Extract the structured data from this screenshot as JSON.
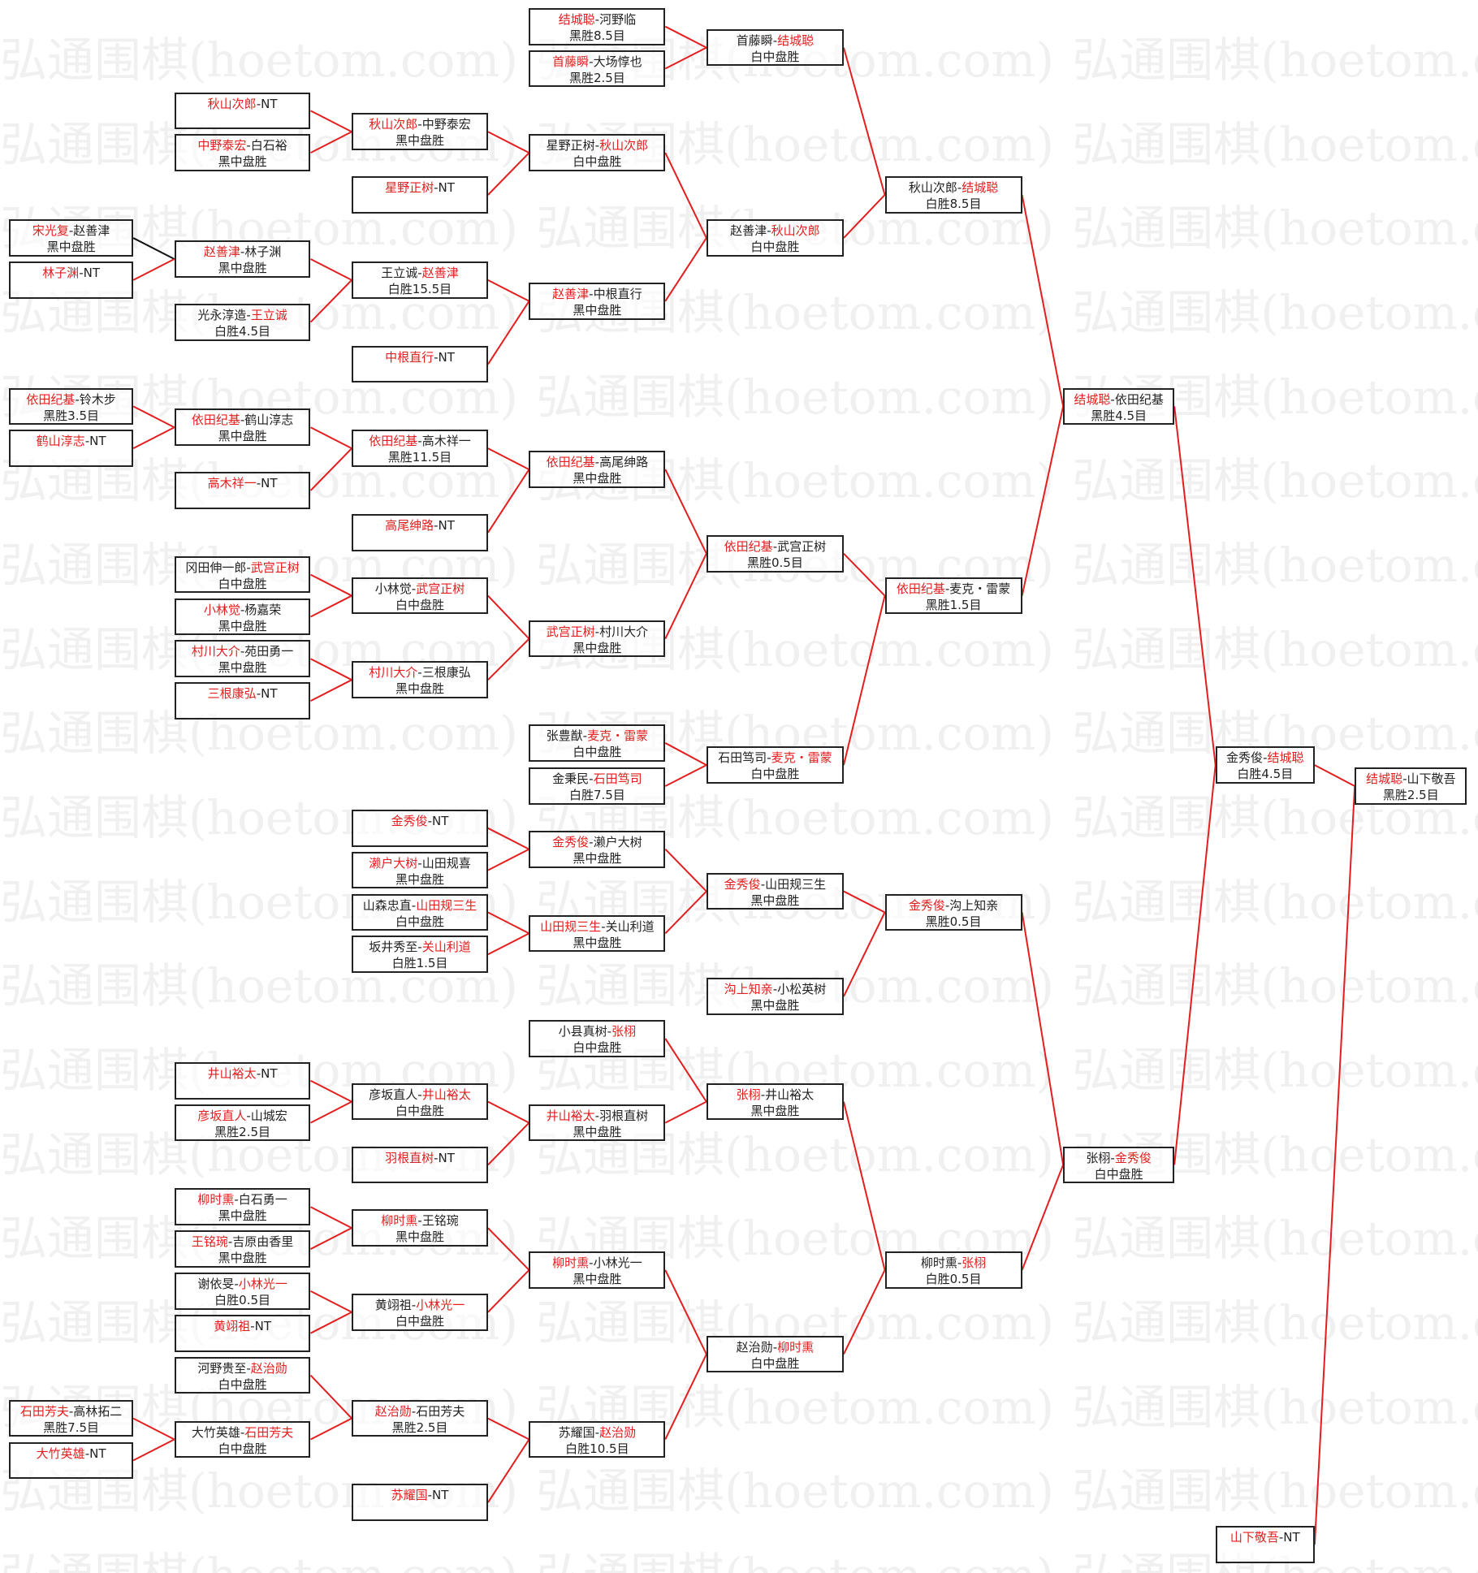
{
  "watermark": "弘通围棋(hoetom.com)",
  "colors": {
    "winner": "#e41e1e",
    "line": "#e41e1e",
    "line_alt": "#111111",
    "border": "#222222"
  },
  "matches": [
    {
      "p1": "结城聪",
      "p2": "河野临",
      "winner": 1,
      "result": "黑胜8.5目"
    },
    {
      "p1": "首藤瞬",
      "p2": "大场惇也",
      "winner": 1,
      "result": "黑胜2.5目"
    },
    {
      "p1": "首藤瞬",
      "p2": "结城聪",
      "winner": 2,
      "result": "白中盘胜"
    },
    {
      "p1": "秋山次郎",
      "p2": "NT",
      "winner": 1,
      "result": ""
    },
    {
      "p1": "中野泰宏",
      "p2": "白石裕",
      "winner": 1,
      "result": "黑中盘胜"
    },
    {
      "p1": "秋山次郎",
      "p2": "中野泰宏",
      "winner": 1,
      "result": "黑中盘胜"
    },
    {
      "p1": "星野正树",
      "p2": "NT",
      "winner": 1,
      "result": ""
    },
    {
      "p1": "星野正树",
      "p2": "秋山次郎",
      "winner": 2,
      "result": "白中盘胜"
    },
    {
      "p1": "宋光复",
      "p2": "赵善津",
      "winner": 1,
      "result": "黑中盘胜"
    },
    {
      "p1": "林子渊",
      "p2": "NT",
      "winner": 1,
      "result": ""
    },
    {
      "p1": "赵善津",
      "p2": "林子渊",
      "winner": 1,
      "result": "黑中盘胜"
    },
    {
      "p1": "光永淳造",
      "p2": "王立诚",
      "winner": 2,
      "result": "白胜4.5目"
    },
    {
      "p1": "王立诚",
      "p2": "赵善津",
      "winner": 2,
      "result": "白胜15.5目"
    },
    {
      "p1": "中根直行",
      "p2": "NT",
      "winner": 1,
      "result": ""
    },
    {
      "p1": "赵善津",
      "p2": "中根直行",
      "winner": 1,
      "result": "黑中盘胜"
    },
    {
      "p1": "赵善津",
      "p2": "秋山次郎",
      "winner": 2,
      "result": "白中盘胜"
    },
    {
      "p1": "秋山次郎",
      "p2": "结城聪",
      "winner": 2,
      "result": "白胜8.5目"
    },
    {
      "p1": "依田纪基",
      "p2": "铃木步",
      "winner": 1,
      "result": "黑胜3.5目"
    },
    {
      "p1": "鹤山淳志",
      "p2": "NT",
      "winner": 1,
      "result": ""
    },
    {
      "p1": "依田纪基",
      "p2": "鹤山淳志",
      "winner": 1,
      "result": "黑中盘胜"
    },
    {
      "p1": "高木祥一",
      "p2": "NT",
      "winner": 1,
      "result": ""
    },
    {
      "p1": "依田纪基",
      "p2": "高木祥一",
      "winner": 1,
      "result": "黑胜11.5目"
    },
    {
      "p1": "高尾绅路",
      "p2": "NT",
      "winner": 1,
      "result": ""
    },
    {
      "p1": "依田纪基",
      "p2": "高尾绅路",
      "winner": 1,
      "result": "黑中盘胜"
    },
    {
      "p1": "冈田伸一郎",
      "p2": "武宫正树",
      "winner": 2,
      "result": "白中盘胜"
    },
    {
      "p1": "小林觉",
      "p2": "杨嘉荣",
      "winner": 1,
      "result": "黑中盘胜"
    },
    {
      "p1": "村川大介",
      "p2": "苑田勇一",
      "winner": 1,
      "result": "黑中盘胜"
    },
    {
      "p1": "三根康弘",
      "p2": "NT",
      "winner": 1,
      "result": ""
    },
    {
      "p1": "小林觉",
      "p2": "武宫正树",
      "winner": 2,
      "result": "白中盘胜"
    },
    {
      "p1": "村川大介",
      "p2": "三根康弘",
      "winner": 1,
      "result": "黑中盘胜"
    },
    {
      "p1": "武宫正树",
      "p2": "村川大介",
      "winner": 1,
      "result": "黑中盘胜"
    },
    {
      "p1": "依田纪基",
      "p2": "武宫正树",
      "winner": 1,
      "result": "黑胜0.5目"
    },
    {
      "p1": "张豊猷",
      "p2": "麦克・雷蒙",
      "winner": 2,
      "result": "白中盘胜"
    },
    {
      "p1": "金秉民",
      "p2": "石田笃司",
      "winner": 2,
      "result": "白胜7.5目"
    },
    {
      "p1": "石田笃司",
      "p2": "麦克・雷蒙",
      "winner": 2,
      "result": "白中盘胜"
    },
    {
      "p1": "依田纪基",
      "p2": "麦克・雷蒙",
      "winner": 1,
      "result": "黑胜1.5目"
    },
    {
      "p1": "结城聪",
      "p2": "依田纪基",
      "winner": 1,
      "result": "黑胜4.5目"
    },
    {
      "p1": "金秀俊",
      "p2": "NT",
      "winner": 1,
      "result": ""
    },
    {
      "p1": "濑户大树",
      "p2": "山田规喜",
      "winner": 1,
      "result": "黑中盘胜"
    },
    {
      "p1": "山森忠直",
      "p2": "山田规三生",
      "winner": 2,
      "result": "白中盘胜"
    },
    {
      "p1": "坂井秀至",
      "p2": "关山利道",
      "winner": 2,
      "result": "白胜1.5目"
    },
    {
      "p1": "金秀俊",
      "p2": "濑户大树",
      "winner": 1,
      "result": "黑中盘胜"
    },
    {
      "p1": "山田规三生",
      "p2": "关山利道",
      "winner": 1,
      "result": "黑中盘胜"
    },
    {
      "p1": "金秀俊",
      "p2": "山田规三生",
      "winner": 1,
      "result": "黑中盘胜"
    },
    {
      "p1": "沟上知亲",
      "p2": "小松英树",
      "winner": 1,
      "result": "黑中盘胜"
    },
    {
      "p1": "金秀俊",
      "p2": "沟上知亲",
      "winner": 1,
      "result": "黑胜0.5目"
    },
    {
      "p1": "小县真树",
      "p2": "张栩",
      "winner": 2,
      "result": "白中盘胜"
    },
    {
      "p1": "井山裕太",
      "p2": "NT",
      "winner": 1,
      "result": ""
    },
    {
      "p1": "彦坂直人",
      "p2": "山城宏",
      "winner": 1,
      "result": "黑胜2.5目"
    },
    {
      "p1": "彦坂直人",
      "p2": "井山裕太",
      "winner": 2,
      "result": "白中盘胜"
    },
    {
      "p1": "羽根直树",
      "p2": "NT",
      "winner": 1,
      "result": ""
    },
    {
      "p1": "井山裕太",
      "p2": "羽根直树",
      "winner": 1,
      "result": "黑中盘胜"
    },
    {
      "p1": "张栩",
      "p2": "井山裕太",
      "winner": 1,
      "result": "黑中盘胜"
    },
    {
      "p1": "柳时熏",
      "p2": "白石勇一",
      "winner": 1,
      "result": "黑中盘胜"
    },
    {
      "p1": "王铭琬",
      "p2": "吉原由香里",
      "winner": 1,
      "result": "黑中盘胜"
    },
    {
      "p1": "谢依旻",
      "p2": "小林光一",
      "winner": 2,
      "result": "白胜0.5目"
    },
    {
      "p1": "黄翊祖",
      "p2": "NT",
      "winner": 1,
      "result": ""
    },
    {
      "p1": "柳时熏",
      "p2": "王铭琬",
      "winner": 1,
      "result": "黑中盘胜"
    },
    {
      "p1": "黄翊祖",
      "p2": "小林光一",
      "winner": 2,
      "result": "白中盘胜"
    },
    {
      "p1": "柳时熏",
      "p2": "小林光一",
      "winner": 1,
      "result": "黑中盘胜"
    },
    {
      "p1": "河野贵至",
      "p2": "赵治勋",
      "winner": 2,
      "result": "白中盘胜"
    },
    {
      "p1": "石田芳夫",
      "p2": "高林拓二",
      "winner": 1,
      "result": "黑胜7.5目"
    },
    {
      "p1": "大竹英雄",
      "p2": "NT",
      "winner": 1,
      "result": ""
    },
    {
      "p1": "大竹英雄",
      "p2": "石田芳夫",
      "winner": 2,
      "result": "白中盘胜"
    },
    {
      "p1": "赵治勋",
      "p2": "石田芳夫",
      "winner": 1,
      "result": "黑胜2.5目"
    },
    {
      "p1": "苏耀国",
      "p2": "NT",
      "winner": 1,
      "result": ""
    },
    {
      "p1": "苏耀国",
      "p2": "赵治勋",
      "winner": 2,
      "result": "白胜10.5目"
    },
    {
      "p1": "赵治勋",
      "p2": "柳时熏",
      "winner": 2,
      "result": "白中盘胜"
    },
    {
      "p1": "柳时熏",
      "p2": "张栩",
      "winner": 2,
      "result": "白胜0.5目"
    },
    {
      "p1": "张栩",
      "p2": "金秀俊",
      "winner": 2,
      "result": "白中盘胜"
    },
    {
      "p1": "金秀俊",
      "p2": "结城聪",
      "winner": 2,
      "result": "白胜4.5目"
    },
    {
      "p1": "山下敬吾",
      "p2": "NT",
      "winner": 1,
      "result": ""
    },
    {
      "p1": "结城聪",
      "p2": "山下敬吾",
      "winner": 1,
      "result": "黑胜2.5目"
    }
  ]
}
